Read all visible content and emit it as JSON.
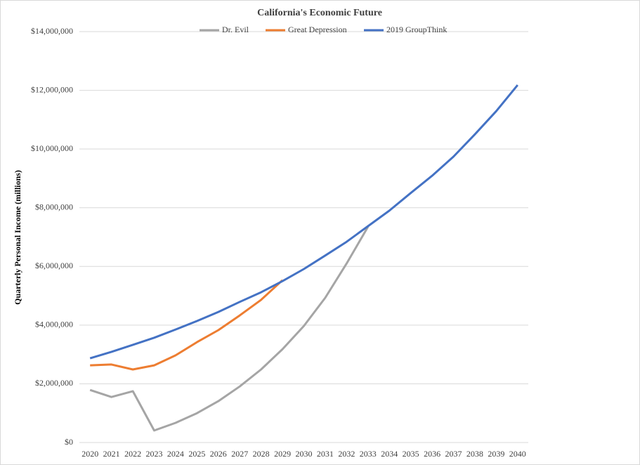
{
  "chart_data": {
    "type": "line",
    "title": "California's Economic Future",
    "y_label": "Quarterly Personal Income (millions)",
    "categories": [
      "2020",
      "2021",
      "2022",
      "2023",
      "2024",
      "2025",
      "2026",
      "2027",
      "2028",
      "2029",
      "2030",
      "2031",
      "2032",
      "2033",
      "2034",
      "2035",
      "2036",
      "2037",
      "2038",
      "2039",
      "2040"
    ],
    "series": [
      {
        "name": "Dr. Evil",
        "color": "#a5a5a5",
        "values": [
          1790000,
          1550000,
          1750000,
          410000,
          670000,
          1000000,
          1410000,
          1910000,
          2490000,
          3180000,
          3970000,
          4930000,
          6100000,
          7350000,
          null,
          null,
          null,
          null,
          null,
          null,
          null
        ]
      },
      {
        "name": "Great Depression",
        "color": "#ed7d31",
        "values": [
          2630000,
          2660000,
          2490000,
          2630000,
          2970000,
          3420000,
          3830000,
          4330000,
          4860000,
          5530000,
          null,
          null,
          null,
          null,
          null,
          null,
          null,
          null,
          null,
          null,
          null
        ]
      },
      {
        "name": "2019 GroupThink",
        "color": "#4472c4",
        "values": [
          2870000,
          3090000,
          3330000,
          3570000,
          3850000,
          4140000,
          4450000,
          4790000,
          5120000,
          5500000,
          5910000,
          6370000,
          6840000,
          7370000,
          7900000,
          8500000,
          9090000,
          9740000,
          10500000,
          11290000,
          12180000
        ]
      }
    ],
    "ylim": [
      0,
      14000000
    ],
    "yticks": [
      {
        "value": 0,
        "label": "$0"
      },
      {
        "value": 2000000,
        "label": "$2,000,000"
      },
      {
        "value": 4000000,
        "label": "$4,000,000"
      },
      {
        "value": 6000000,
        "label": "$6,000,000"
      },
      {
        "value": 8000000,
        "label": "$8,000,000"
      },
      {
        "value": 10000000,
        "label": "$10,000,000"
      },
      {
        "value": 12000000,
        "label": "$12,000,000"
      },
      {
        "value": 14000000,
        "label": "$14,000,000"
      }
    ],
    "grid": true,
    "legend": "top"
  }
}
